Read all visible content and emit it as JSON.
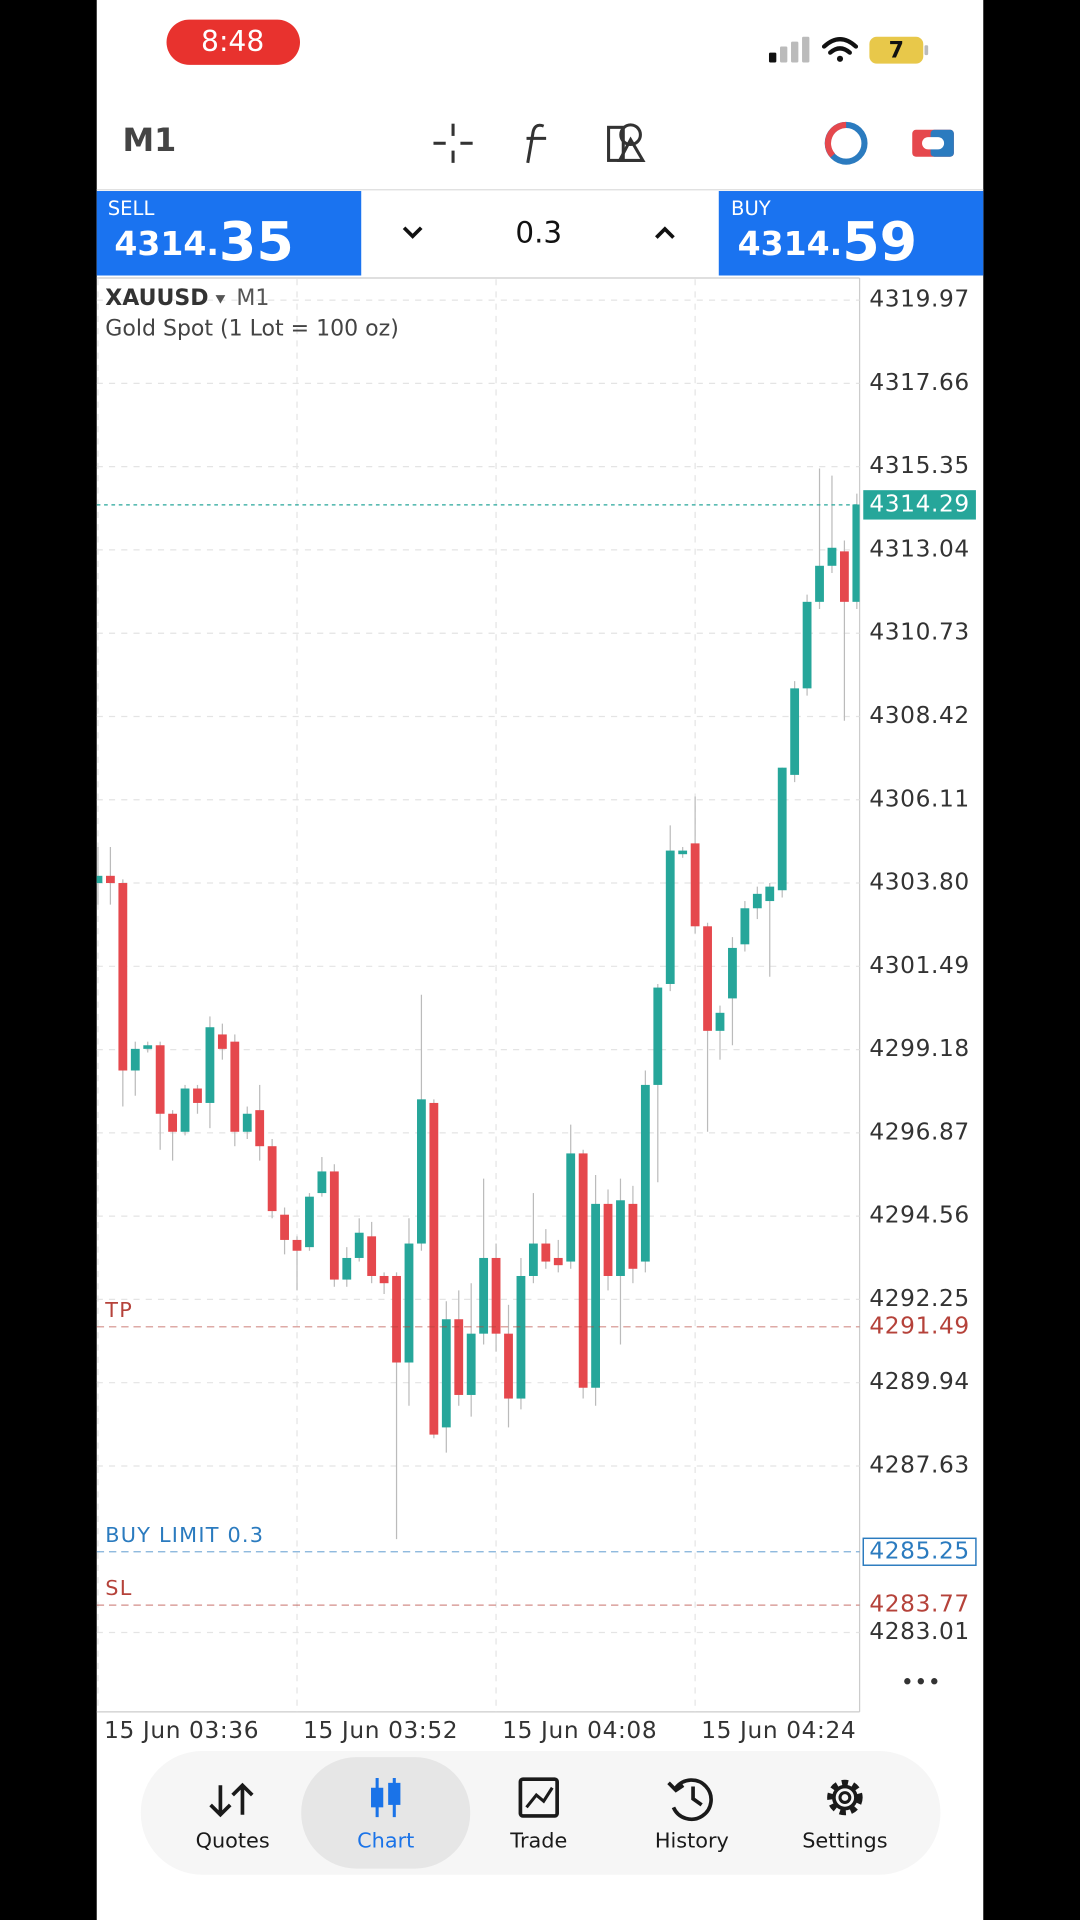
{
  "status_bar": {
    "time": "8:48",
    "battery": "7"
  },
  "toolbar": {
    "timeframe": "M1"
  },
  "trade_panel": {
    "sell": {
      "label": "SELL",
      "price_prefix": "4314.",
      "price_suffix": "35"
    },
    "volume": "0.3",
    "buy": {
      "label": "BUY",
      "price_prefix": "4314.",
      "price_suffix": "59"
    }
  },
  "chart_data": {
    "type": "candlestick",
    "symbol": "XAUUSD",
    "timeframe": "M1",
    "description": "Gold Spot (1 Lot = 100 oz)",
    "categories": [
      "15 Jun 03:36",
      null,
      null,
      null,
      null,
      null,
      null,
      null,
      null,
      null,
      null,
      null,
      null,
      null,
      null,
      null,
      "15 Jun 03:52",
      null,
      null,
      null,
      null,
      null,
      null,
      null,
      null,
      null,
      null,
      null,
      null,
      null,
      null,
      null,
      "15 Jun 04:08",
      null,
      null,
      null,
      null,
      null,
      null,
      null,
      null,
      null,
      null,
      null,
      null,
      null,
      null,
      null,
      "15 Jun 04:24",
      null,
      null,
      null,
      null,
      null,
      null,
      null,
      null,
      null,
      null,
      null,
      null,
      null
    ],
    "open": [
      4303.8,
      4304.0,
      4303.8,
      4298.6,
      4299.2,
      4299.3,
      4297.4,
      4296.9,
      4298.1,
      4297.7,
      4299.6,
      4299.4,
      4296.9,
      4297.5,
      4296.5,
      4294.6,
      4293.9,
      4293.7,
      4295.2,
      4295.8,
      4292.8,
      4293.4,
      4294.0,
      4292.9,
      4292.9,
      4290.5,
      4293.8,
      4297.7,
      4288.7,
      4291.7,
      4289.6,
      4291.3,
      4293.4,
      4291.3,
      4289.5,
      4292.9,
      4293.8,
      4293.4,
      4293.3,
      4296.3,
      4289.8,
      4294.9,
      4292.9,
      4294.9,
      4293.3,
      4298.2,
      4301.0,
      4304.6,
      4304.9,
      4302.6,
      4299.7,
      4300.6,
      4302.1,
      4303.1,
      4303.3,
      4303.6,
      4306.8,
      4309.2,
      4311.6,
      4312.6,
      4313.0,
      4311.6
    ],
    "high": [
      4304.8,
      4304.8,
      4303.9,
      4299.4,
      4299.4,
      4299.4,
      4297.5,
      4298.2,
      4298.2,
      4300.1,
      4299.9,
      4299.6,
      4297.6,
      4298.2,
      4296.7,
      4294.8,
      4294.0,
      4295.2,
      4296.2,
      4296.0,
      4293.7,
      4294.5,
      4294.4,
      4293.0,
      4293.0,
      4294.5,
      4300.7,
      4297.8,
      4292.2,
      4292.5,
      4292.7,
      4295.6,
      4293.8,
      4292.1,
      4293.4,
      4295.2,
      4294.2,
      4293.9,
      4297.1,
      4296.4,
      4295.7,
      4295.3,
      4295.6,
      4295.4,
      4298.6,
      4301.0,
      4305.4,
      4304.8,
      4306.2,
      4302.7,
      4300.4,
      4302.3,
      4303.3,
      4303.7,
      4303.8,
      4307.0,
      4309.4,
      4311.8,
      4315.3,
      4315.1,
      4313.3,
      4314.6
    ],
    "low": [
      4303.2,
      4303.2,
      4297.6,
      4297.9,
      4299.1,
      4296.4,
      4296.1,
      4296.8,
      4297.4,
      4297.0,
      4298.9,
      4296.5,
      4296.7,
      4296.1,
      4294.5,
      4293.5,
      4292.5,
      4293.6,
      4295.1,
      4292.6,
      4292.6,
      4293.3,
      4292.7,
      4292.4,
      4285.6,
      4289.3,
      4293.6,
      4288.4,
      4288.0,
      4289.3,
      4289.0,
      4291.0,
      4290.8,
      4288.7,
      4289.2,
      4292.7,
      4293.1,
      4293.0,
      4293.1,
      4289.5,
      4289.3,
      4292.5,
      4291.0,
      4292.7,
      4293.0,
      4295.5,
      4300.8,
      4304.5,
      4302.4,
      4296.9,
      4298.9,
      4299.3,
      4301.9,
      4302.8,
      4301.2,
      4303.4,
      4306.6,
      4309.0,
      4311.4,
      4312.4,
      4308.3,
      4311.4
    ],
    "close": [
      4304.0,
      4303.8,
      4298.6,
      4299.2,
      4299.3,
      4297.4,
      4296.9,
      4298.1,
      4297.7,
      4299.8,
      4299.2,
      4296.9,
      4297.4,
      4296.5,
      4294.7,
      4293.9,
      4293.6,
      4295.1,
      4295.8,
      4292.8,
      4293.4,
      4294.1,
      4292.9,
      4292.7,
      4290.5,
      4293.8,
      4297.8,
      4288.5,
      4291.7,
      4289.6,
      4291.3,
      4293.4,
      4291.3,
      4289.5,
      4292.9,
      4293.8,
      4293.3,
      4293.2,
      4296.3,
      4289.8,
      4294.9,
      4292.9,
      4295.0,
      4293.1,
      4298.2,
      4300.9,
      4304.7,
      4304.7,
      4302.6,
      4299.7,
      4300.2,
      4302.0,
      4303.1,
      4303.5,
      4303.7,
      4307.0,
      4309.2,
      4311.6,
      4312.6,
      4313.1,
      4311.6,
      4314.3
    ],
    "up_color": "#26a69a",
    "down_color": "#e5484d",
    "ylim": [
      4280.81,
      4320.55
    ],
    "yticks": [
      4319.97,
      4317.66,
      4315.35,
      4313.04,
      4310.73,
      4308.42,
      4306.11,
      {
        "value": 4303.8,
        "label": "4303.80"
      },
      4301.49,
      4299.18,
      4296.87,
      4294.56,
      4292.25,
      4289.94,
      4287.63,
      4283.01
    ],
    "grid": true,
    "current_price": {
      "value": 4314.29,
      "color": "#26a69a"
    },
    "levels": [
      {
        "label": "TP",
        "value": 4291.49,
        "color": "#b5423a"
      },
      {
        "label": "BUY LIMIT 0.3",
        "value": 4285.25,
        "color": "#2b7bbf",
        "boxed": true
      },
      {
        "label": "SL",
        "value": 4283.77,
        "color": "#b5423a"
      }
    ]
  },
  "tab_bar": {
    "items": [
      {
        "label": "Quotes"
      },
      {
        "label": "Chart",
        "selected": true
      },
      {
        "label": "Trade"
      },
      {
        "label": "History"
      },
      {
        "label": "Settings"
      }
    ]
  }
}
